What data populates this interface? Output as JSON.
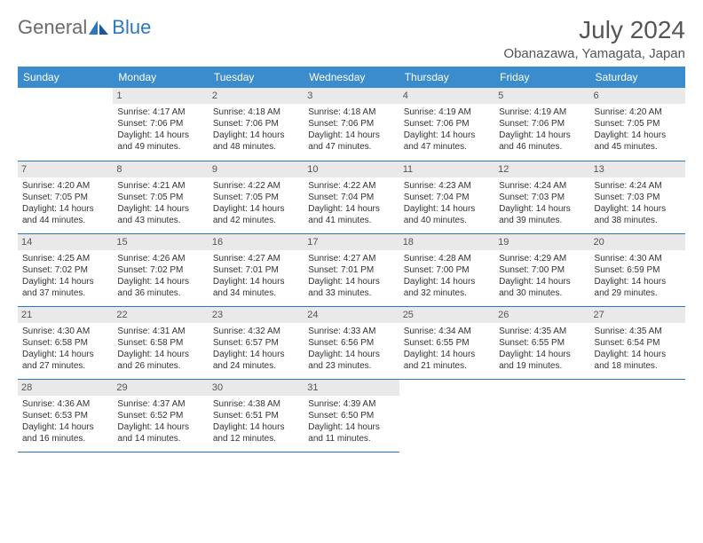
{
  "brand": {
    "part1": "General",
    "part2": "Blue"
  },
  "title": "July 2024",
  "location": "Obanazawa, Yamagata, Japan",
  "colors": {
    "header_bg": "#3a8ccc",
    "header_text": "#ffffff",
    "daynum_bg": "#e9e9e9",
    "border": "#2b77c0",
    "text": "#333333",
    "title_text": "#555555"
  },
  "weekdays": [
    "Sunday",
    "Monday",
    "Tuesday",
    "Wednesday",
    "Thursday",
    "Friday",
    "Saturday"
  ],
  "first_weekday_index": 1,
  "days": [
    {
      "n": 1,
      "sunrise": "4:17 AM",
      "sunset": "7:06 PM",
      "dl": "14 hours and 49 minutes."
    },
    {
      "n": 2,
      "sunrise": "4:18 AM",
      "sunset": "7:06 PM",
      "dl": "14 hours and 48 minutes."
    },
    {
      "n": 3,
      "sunrise": "4:18 AM",
      "sunset": "7:06 PM",
      "dl": "14 hours and 47 minutes."
    },
    {
      "n": 4,
      "sunrise": "4:19 AM",
      "sunset": "7:06 PM",
      "dl": "14 hours and 47 minutes."
    },
    {
      "n": 5,
      "sunrise": "4:19 AM",
      "sunset": "7:06 PM",
      "dl": "14 hours and 46 minutes."
    },
    {
      "n": 6,
      "sunrise": "4:20 AM",
      "sunset": "7:05 PM",
      "dl": "14 hours and 45 minutes."
    },
    {
      "n": 7,
      "sunrise": "4:20 AM",
      "sunset": "7:05 PM",
      "dl": "14 hours and 44 minutes."
    },
    {
      "n": 8,
      "sunrise": "4:21 AM",
      "sunset": "7:05 PM",
      "dl": "14 hours and 43 minutes."
    },
    {
      "n": 9,
      "sunrise": "4:22 AM",
      "sunset": "7:05 PM",
      "dl": "14 hours and 42 minutes."
    },
    {
      "n": 10,
      "sunrise": "4:22 AM",
      "sunset": "7:04 PM",
      "dl": "14 hours and 41 minutes."
    },
    {
      "n": 11,
      "sunrise": "4:23 AM",
      "sunset": "7:04 PM",
      "dl": "14 hours and 40 minutes."
    },
    {
      "n": 12,
      "sunrise": "4:24 AM",
      "sunset": "7:03 PM",
      "dl": "14 hours and 39 minutes."
    },
    {
      "n": 13,
      "sunrise": "4:24 AM",
      "sunset": "7:03 PM",
      "dl": "14 hours and 38 minutes."
    },
    {
      "n": 14,
      "sunrise": "4:25 AM",
      "sunset": "7:02 PM",
      "dl": "14 hours and 37 minutes."
    },
    {
      "n": 15,
      "sunrise": "4:26 AM",
      "sunset": "7:02 PM",
      "dl": "14 hours and 36 minutes."
    },
    {
      "n": 16,
      "sunrise": "4:27 AM",
      "sunset": "7:01 PM",
      "dl": "14 hours and 34 minutes."
    },
    {
      "n": 17,
      "sunrise": "4:27 AM",
      "sunset": "7:01 PM",
      "dl": "14 hours and 33 minutes."
    },
    {
      "n": 18,
      "sunrise": "4:28 AM",
      "sunset": "7:00 PM",
      "dl": "14 hours and 32 minutes."
    },
    {
      "n": 19,
      "sunrise": "4:29 AM",
      "sunset": "7:00 PM",
      "dl": "14 hours and 30 minutes."
    },
    {
      "n": 20,
      "sunrise": "4:30 AM",
      "sunset": "6:59 PM",
      "dl": "14 hours and 29 minutes."
    },
    {
      "n": 21,
      "sunrise": "4:30 AM",
      "sunset": "6:58 PM",
      "dl": "14 hours and 27 minutes."
    },
    {
      "n": 22,
      "sunrise": "4:31 AM",
      "sunset": "6:58 PM",
      "dl": "14 hours and 26 minutes."
    },
    {
      "n": 23,
      "sunrise": "4:32 AM",
      "sunset": "6:57 PM",
      "dl": "14 hours and 24 minutes."
    },
    {
      "n": 24,
      "sunrise": "4:33 AM",
      "sunset": "6:56 PM",
      "dl": "14 hours and 23 minutes."
    },
    {
      "n": 25,
      "sunrise": "4:34 AM",
      "sunset": "6:55 PM",
      "dl": "14 hours and 21 minutes."
    },
    {
      "n": 26,
      "sunrise": "4:35 AM",
      "sunset": "6:55 PM",
      "dl": "14 hours and 19 minutes."
    },
    {
      "n": 27,
      "sunrise": "4:35 AM",
      "sunset": "6:54 PM",
      "dl": "14 hours and 18 minutes."
    },
    {
      "n": 28,
      "sunrise": "4:36 AM",
      "sunset": "6:53 PM",
      "dl": "14 hours and 16 minutes."
    },
    {
      "n": 29,
      "sunrise": "4:37 AM",
      "sunset": "6:52 PM",
      "dl": "14 hours and 14 minutes."
    },
    {
      "n": 30,
      "sunrise": "4:38 AM",
      "sunset": "6:51 PM",
      "dl": "14 hours and 12 minutes."
    },
    {
      "n": 31,
      "sunrise": "4:39 AM",
      "sunset": "6:50 PM",
      "dl": "14 hours and 11 minutes."
    }
  ],
  "labels": {
    "sunrise": "Sunrise: ",
    "sunset": "Sunset: ",
    "daylight": "Daylight: "
  }
}
